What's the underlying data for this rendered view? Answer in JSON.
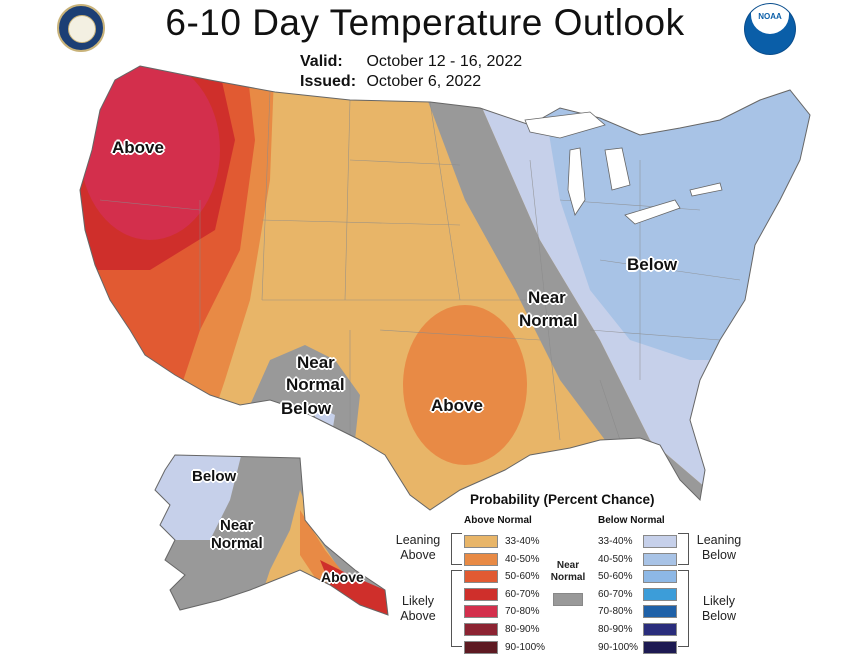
{
  "header": {
    "title": "6-10 Day Temperature Outlook",
    "valid_label": "Valid:",
    "valid_value": "October 12 - 16, 2022",
    "issued_label": "Issued:",
    "issued_value": "October 6, 2022"
  },
  "logos": {
    "left": "commerce-seal",
    "right_text": "NOAA"
  },
  "map_labels": {
    "above_west": "Above",
    "near_normal_sw_1": "Near",
    "near_normal_sw_2": "Normal",
    "below_sw": "Below",
    "above_south": "Above",
    "near_normal_mid_1": "Near",
    "near_normal_mid_2": "Normal",
    "below_east": "Below",
    "ak_below": "Below",
    "ak_near_1": "Near",
    "ak_near_2": "Normal",
    "ak_above": "Above"
  },
  "legend": {
    "title": "Probability (Percent Chance)",
    "above_header": "Above Normal",
    "below_header": "Below Normal",
    "leaning_above_1": "Leaning",
    "leaning_above_2": "Above",
    "likely_above_1": "Likely",
    "likely_above_2": "Above",
    "leaning_below_1": "Leaning",
    "leaning_below_2": "Below",
    "likely_below_1": "Likely",
    "likely_below_2": "Below",
    "near_normal_1": "Near",
    "near_normal_2": "Normal",
    "ranges": [
      "33-40%",
      "40-50%",
      "50-60%",
      "60-70%",
      "70-80%",
      "80-90%",
      "90-100%"
    ],
    "above_colors": [
      "#e8b568",
      "#e88a45",
      "#e15a32",
      "#cf2f2b",
      "#d32f4c",
      "#8c2332",
      "#5e1a22"
    ],
    "below_colors": [
      "#c6d0ea",
      "#a8c3e6",
      "#8db8e6",
      "#3c9dd9",
      "#1f61a8",
      "#2a2d7c",
      "#1d1a52"
    ],
    "near_color": "#999999"
  }
}
